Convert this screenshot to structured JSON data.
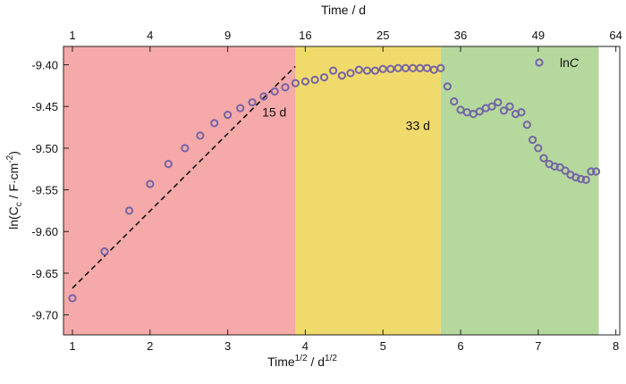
{
  "chart_data": {
    "type": "scatter",
    "xlabel_parts": [
      "Time",
      "1/2",
      " / d",
      "1/2"
    ],
    "ylabel_parts": [
      "ln(C",
      "c",
      " / F·cm",
      "-2",
      ")"
    ],
    "top_xlabel": "Time / d",
    "xlim": [
      0.885,
      8.05
    ],
    "ylim": [
      -9.724,
      -9.378
    ],
    "x_ticks": [
      1,
      2,
      3,
      4,
      5,
      6,
      7,
      8
    ],
    "x_tick_labels": [
      "1",
      "2",
      "3",
      "4",
      "5",
      "6",
      "7",
      "8"
    ],
    "y_ticks": [
      -9.4,
      -9.45,
      -9.5,
      -9.55,
      -9.6,
      -9.65,
      -9.7
    ],
    "y_tick_labels": [
      "-9.40",
      "-9.45",
      "-9.50",
      "-9.55",
      "-9.60",
      "-9.65",
      "-9.70"
    ],
    "top_ticks_days": [
      1,
      4,
      9,
      16,
      25,
      36,
      49,
      64
    ],
    "top_tick_labels": [
      "1",
      "4",
      "9",
      "16",
      "25",
      "36",
      "49",
      "64"
    ],
    "regions": [
      {
        "from": 0.885,
        "to": 3.873,
        "color": "#f5a9a8"
      },
      {
        "from": 3.873,
        "to": 5.745,
        "color": "#f0da6c"
      },
      {
        "from": 5.745,
        "to": 7.78,
        "color": "#b5d89d"
      }
    ],
    "annotations": [
      {
        "text": "15 d",
        "x": 3.6,
        "y": -9.462
      },
      {
        "text": "33 d",
        "x": 5.45,
        "y": -9.478
      }
    ],
    "fit_line": {
      "x": [
        1.0,
        3.87
      ],
      "y": [
        -9.668,
        -9.402
      ],
      "style": "dashed",
      "color": "#111111"
    },
    "series": [
      {
        "name": "lnC",
        "color": "#7564a6",
        "days": [
          1,
          2,
          3,
          4,
          5,
          6,
          7,
          8,
          9,
          10,
          11,
          12,
          13,
          14,
          15,
          16,
          17,
          18,
          19,
          20,
          21,
          22,
          23,
          24,
          25,
          26,
          27,
          28,
          29,
          30,
          31,
          32,
          33,
          34,
          35,
          36,
          37,
          38,
          39,
          40,
          41,
          42,
          43,
          44,
          45,
          46,
          47,
          48,
          49,
          50,
          51,
          52,
          53,
          54,
          55,
          56,
          57,
          58,
          59,
          60
        ],
        "values": [
          -9.68,
          -9.624,
          -9.575,
          -9.543,
          -9.519,
          -9.5,
          -9.485,
          -9.47,
          -9.46,
          -9.452,
          -9.445,
          -9.438,
          -9.432,
          -9.427,
          -9.422,
          -9.42,
          -9.418,
          -9.415,
          -9.407,
          -9.413,
          -9.41,
          -9.406,
          -9.407,
          -9.407,
          -9.405,
          -9.405,
          -9.404,
          -9.404,
          -9.404,
          -9.404,
          -9.404,
          -9.406,
          -9.404,
          -9.426,
          -9.444,
          -9.454,
          -9.457,
          -9.459,
          -9.456,
          -9.452,
          -9.45,
          -9.445,
          -9.455,
          -9.45,
          -9.459,
          -9.457,
          -9.472,
          -9.49,
          -9.5,
          -9.512,
          -9.519,
          -9.522,
          -9.523,
          -9.527,
          -9.532,
          -9.535,
          -9.537,
          -9.538,
          -9.528,
          -9.528
        ]
      }
    ],
    "legend": {
      "label_prefix": "ln",
      "label_var": "C",
      "placement": "top-right"
    },
    "grid": false
  }
}
